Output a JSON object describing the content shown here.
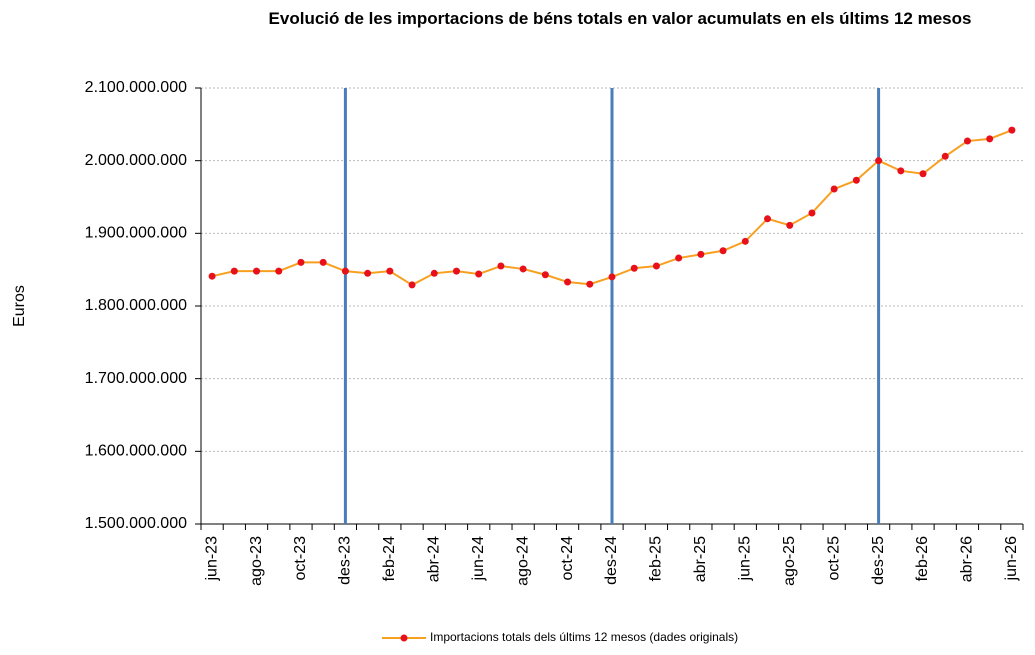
{
  "chart_data": {
    "type": "line",
    "title": "Evolució de les importacions de béns totals en valor acumulats en els últims 12 mesos",
    "y_label": "Euros",
    "categories": [
      "jun-23",
      null,
      "ago-23",
      null,
      "oct-23",
      null,
      "des-23",
      null,
      "feb-24",
      null,
      "abr-24",
      null,
      "jun-24",
      null,
      "ago-24",
      null,
      "oct-24",
      null,
      "des-24",
      null,
      "feb-25",
      null,
      "abr-25",
      null,
      "jun-25",
      null,
      "ago-25",
      null,
      "oct-25",
      null,
      "des-25",
      null,
      "feb-26",
      null,
      "abr-26",
      null,
      "jun-26"
    ],
    "series": [
      {
        "name": "Importacions totals dels últims 12 mesos (dades originals)",
        "color": "#f7a020",
        "marker_color": "#e8101a",
        "values": [
          1841000000,
          1848000000,
          1848000000,
          1848000000,
          1860000000,
          1860000000,
          1848000000,
          1845000000,
          1848000000,
          1829000000,
          1845000000,
          1848000000,
          1844000000,
          1855000000,
          1851000000,
          1843000000,
          1833000000,
          1830000000,
          1840000000,
          1852000000,
          1855000000,
          1866000000,
          1871000000,
          1876000000,
          1889000000,
          1920000000,
          1911000000,
          1928000000,
          1961000000,
          1973000000,
          2000000000,
          1986000000,
          1982000000,
          2006000000,
          2027000000,
          2030000000,
          2042000000
        ]
      }
    ],
    "ylim": [
      1500000000,
      2100000000
    ],
    "yticks": [
      {
        "value": 1500000000,
        "label": "1.500.000.000"
      },
      {
        "value": 1600000000,
        "label": "1.600.000.000"
      },
      {
        "value": 1700000000,
        "label": "1.700.000.000"
      },
      {
        "value": 1800000000,
        "label": "1.800.000.000"
      },
      {
        "value": 1900000000,
        "label": "1.900.000.000"
      },
      {
        "value": 2000000000,
        "label": "2.000.000.000"
      },
      {
        "value": 2100000000,
        "label": "2.100.000.000"
      }
    ],
    "grid": true,
    "legend": "bottom"
  }
}
